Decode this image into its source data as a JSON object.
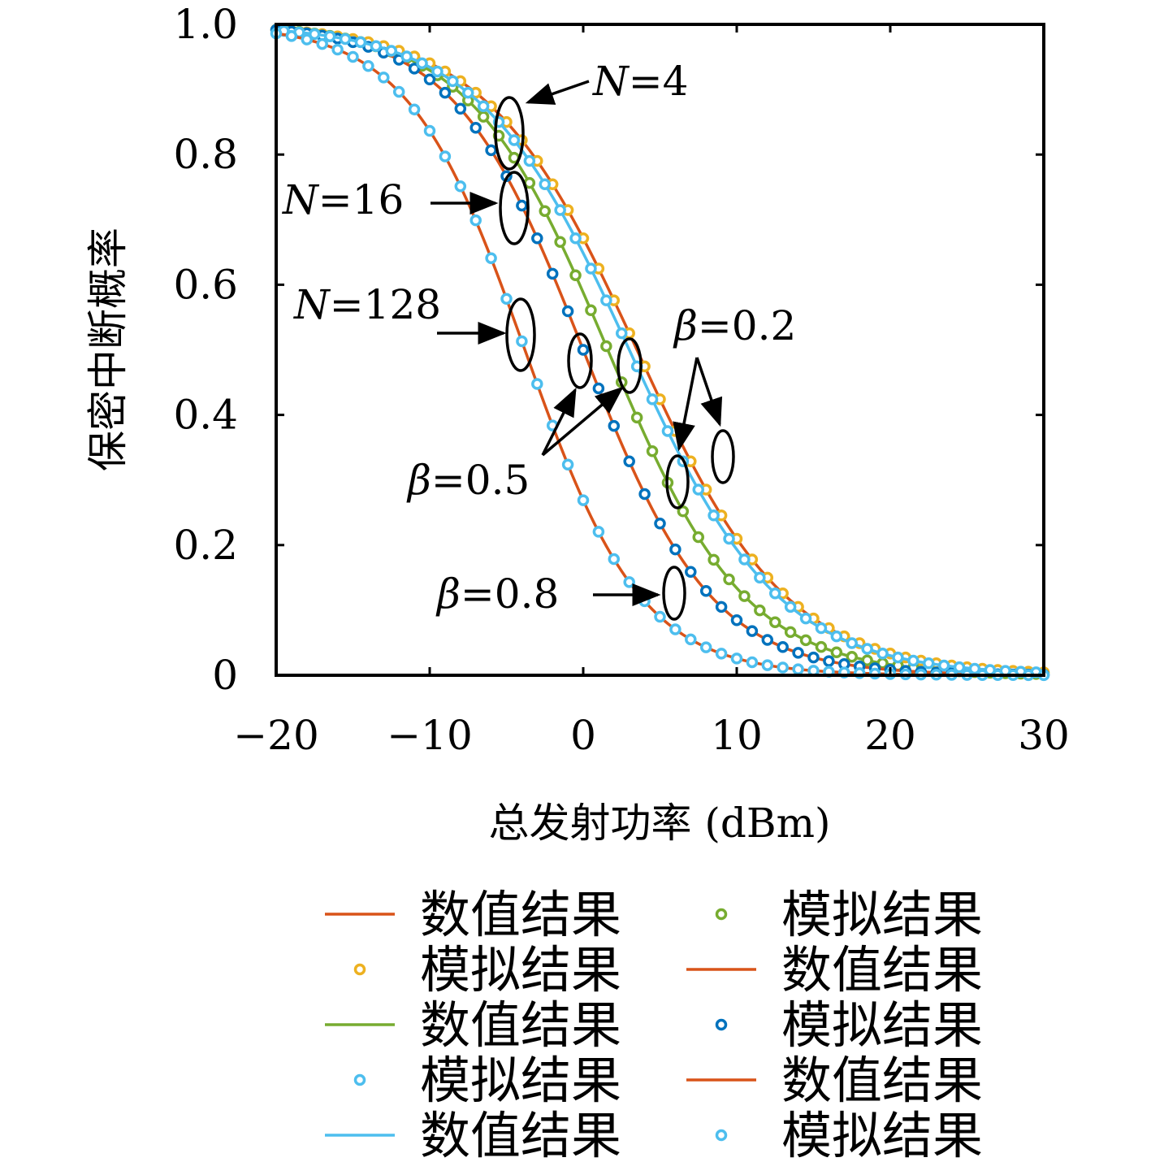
{
  "chart_data": {
    "type": "line",
    "xlabel": "总发射功率 (dBm)",
    "ylabel": "保密中断概率",
    "xlim": [
      -20,
      30
    ],
    "ylim": [
      0,
      1.0
    ],
    "x_ticks": [
      "−20",
      "−10",
      "0",
      "10",
      "20",
      "30"
    ],
    "y_ticks": [
      "0",
      "0.2",
      "0.4",
      "0.6",
      "0.8",
      "1.0"
    ],
    "grid": false,
    "curve_model": "logistic: y = 1 / (1 + exp((x - x0)/s)), points every 1 dB",
    "series": [
      {
        "kind": "line",
        "color": "#d95319",
        "x0": 3.5,
        "s": 4.9,
        "offset": 0
      },
      {
        "kind": "marker",
        "color": "#edb120",
        "x0": 3.5,
        "s": 4.9,
        "offset": 0
      },
      {
        "kind": "line",
        "color": "#77ac30",
        "x0": 1.6,
        "s": 4.5,
        "offset": 0
      },
      {
        "kind": "marker",
        "color": "#77ac30",
        "x0": 1.6,
        "s": 4.5,
        "offset": 0.5
      },
      {
        "kind": "line",
        "color": "#d95319",
        "x0": 0.0,
        "s": 4.2,
        "offset": 0
      },
      {
        "kind": "marker",
        "color": "#0072bd",
        "x0": 0.0,
        "s": 4.2,
        "offset": 0
      },
      {
        "kind": "line",
        "color": "#4dbeee",
        "x0": 3.0,
        "s": 4.9,
        "offset": 0
      },
      {
        "kind": "marker",
        "color": "#4dbeee",
        "x0": 3.0,
        "s": 4.9,
        "offset": 0.5
      },
      {
        "kind": "line",
        "color": "#d95319",
        "x0": -3.8,
        "s": 3.8,
        "offset": 0
      },
      {
        "kind": "marker",
        "color": "#4dbeee",
        "x0": -3.8,
        "s": 3.8,
        "offset": 0
      }
    ],
    "annotations": [
      {
        "italic": "N",
        "rest": "=4"
      },
      {
        "italic": "N",
        "rest": "=16"
      },
      {
        "italic": "N",
        "rest": "=128"
      },
      {
        "italic": "β",
        "rest": "=0.2"
      },
      {
        "italic": "β",
        "rest": "=0.5"
      },
      {
        "italic": "β",
        "rest": "=0.8"
      }
    ],
    "legend": {
      "placement": "bottom",
      "columns": [
        [
          {
            "kind": "line",
            "color": "#d95319",
            "label": "数值结果"
          },
          {
            "kind": "marker",
            "color": "#edb120",
            "label": "模拟结果"
          },
          {
            "kind": "line",
            "color": "#77ac30",
            "label": "数值结果"
          },
          {
            "kind": "marker",
            "color": "#4dbeee",
            "label": "模拟结果"
          },
          {
            "kind": "line",
            "color": "#4dbeee",
            "label": "数值结果"
          }
        ],
        [
          {
            "kind": "marker",
            "color": "#77ac30",
            "label": "模拟结果"
          },
          {
            "kind": "line",
            "color": "#d95319",
            "label": "数值结果"
          },
          {
            "kind": "marker",
            "color": "#0072bd",
            "label": "模拟结果"
          },
          {
            "kind": "line",
            "color": "#d95319",
            "label": "数值结果"
          },
          {
            "kind": "marker",
            "color": "#4dbeee",
            "label": "模拟结果"
          }
        ]
      ]
    }
  }
}
